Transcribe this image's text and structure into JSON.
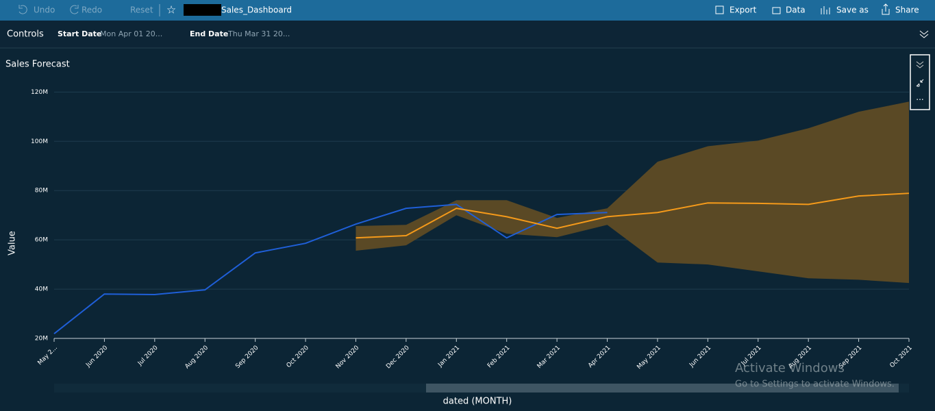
{
  "toolbar": {
    "undo": "Undo",
    "redo": "Redo",
    "reset": "Reset",
    "dashboard": "Sales_Dashboard",
    "export": "Export",
    "data": "Data",
    "save_as": "Save as",
    "share": "Share"
  },
  "controls": {
    "title": "Controls",
    "start_label": "Start Date",
    "start_value": "Mon Apr 01 20...",
    "end_label": "End Date",
    "end_value": "Thu Mar 31 20..."
  },
  "watermark": {
    "title": "Activate Windows",
    "text": "Go to Settings to activate Windows."
  },
  "chart_data": {
    "type": "line",
    "title": "Sales Forecast",
    "ylabel": "Value",
    "xlabel": "dated (MONTH)",
    "categories": [
      "May 2...",
      "Jun 2020",
      "Jul 2020",
      "Aug 2020",
      "Sep 2020",
      "Oct 2020",
      "Nov 2020",
      "Dec 2020",
      "Jan 2021",
      "Feb 2021",
      "Mar 2021",
      "Apr 2021",
      "May 2021",
      "Jun 2021",
      "Jul 2021",
      "Aug 2021",
      "Sep 2021",
      "Oct 2021"
    ],
    "ylim": [
      20000000,
      124000000
    ],
    "yticks": [
      {
        "value": 20000000,
        "label": "20M"
      },
      {
        "value": 40000000,
        "label": "40M"
      },
      {
        "value": 60000000,
        "label": "60M"
      },
      {
        "value": 80000000,
        "label": "80M"
      },
      {
        "value": 100000000,
        "label": "100M"
      },
      {
        "value": 120000000,
        "label": "120M"
      }
    ],
    "grid": true,
    "series": [
      {
        "color": "#1f5fd8",
        "values": [
          21900000,
          38000000,
          37800000,
          39700000,
          54700000,
          58600000,
          66400000,
          72800000,
          74400000,
          60800000,
          70300000,
          71100000,
          null,
          null,
          null,
          null,
          null,
          null
        ]
      },
      {
        "color": "#f59a1a",
        "band_color": "#5a4925",
        "values": [
          null,
          null,
          null,
          null,
          null,
          null,
          60800000,
          61700000,
          72800000,
          69400000,
          64700000,
          69400000,
          71100000,
          75000000,
          74800000,
          74400000,
          77800000,
          78900000
        ],
        "upper": [
          null,
          null,
          null,
          null,
          null,
          null,
          65600000,
          66100000,
          76100000,
          76100000,
          68900000,
          72800000,
          91700000,
          98000000,
          100300000,
          105300000,
          112000000,
          116100000
        ],
        "lower": [
          null,
          null,
          null,
          null,
          null,
          null,
          55600000,
          57800000,
          70000000,
          62500000,
          61100000,
          66100000,
          50800000,
          50000000,
          47200000,
          44400000,
          43800000,
          42500000
        ]
      }
    ]
  }
}
